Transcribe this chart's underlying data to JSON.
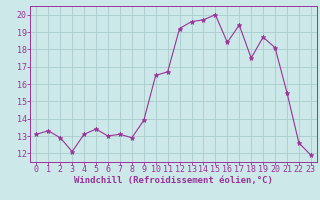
{
  "x": [
    0,
    1,
    2,
    3,
    4,
    5,
    6,
    7,
    8,
    9,
    10,
    11,
    12,
    13,
    14,
    15,
    16,
    17,
    18,
    19,
    20,
    21,
    22,
    23
  ],
  "y": [
    13.1,
    13.3,
    12.9,
    12.1,
    13.1,
    13.4,
    13.0,
    13.1,
    12.9,
    13.9,
    16.5,
    16.7,
    19.2,
    19.6,
    19.7,
    20.0,
    18.4,
    19.4,
    17.5,
    18.7,
    18.1,
    15.5,
    12.6,
    11.9
  ],
  "line_color": "#993399",
  "marker": "*",
  "marker_size": 3.5,
  "bg_color": "#cce8e8",
  "grid_color": "#aacccc",
  "xlabel": "Windchill (Refroidissement éolien,°C)",
  "xlim": [
    -0.5,
    23.5
  ],
  "ylim": [
    11.5,
    20.5
  ],
  "yticks": [
    12,
    13,
    14,
    15,
    16,
    17,
    18,
    19,
    20
  ],
  "xticks": [
    0,
    1,
    2,
    3,
    4,
    5,
    6,
    7,
    8,
    9,
    10,
    11,
    12,
    13,
    14,
    15,
    16,
    17,
    18,
    19,
    20,
    21,
    22,
    23
  ],
  "tick_color": "#993399",
  "label_color": "#993399",
  "axis_label_fontsize": 6.5,
  "tick_fontsize": 6.0,
  "linewidth": 0.8
}
